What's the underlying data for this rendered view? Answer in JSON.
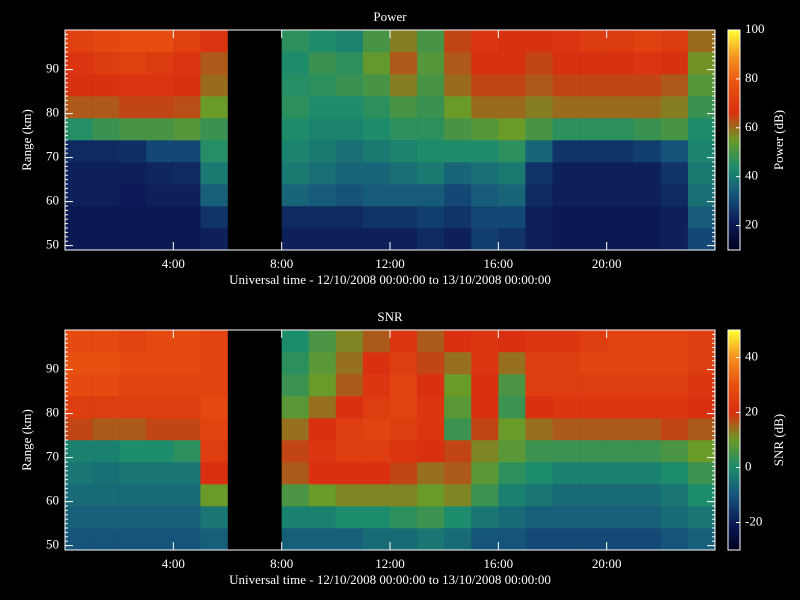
{
  "chart_data": [
    {
      "type": "heatmap",
      "title": "Power",
      "xlabel": "Universal time - 12/10/2008 00:00:00 to 13/10/2008 00:00:00",
      "ylabel": "Range (km)",
      "colorbar_label": "Power (dB)",
      "x_edges": [
        0,
        1,
        2,
        3,
        4,
        5,
        6,
        7,
        8,
        9,
        10,
        11,
        12,
        13,
        14,
        15,
        16,
        17,
        18,
        19,
        20,
        21,
        22,
        23,
        24
      ],
      "y_edges": [
        49,
        54,
        59,
        64,
        69,
        74,
        79,
        84,
        89,
        94,
        99
      ],
      "xlim": [
        0,
        24
      ],
      "ylim": [
        49,
        99
      ],
      "xticks": [
        {
          "value": 4,
          "label": "4:00"
        },
        {
          "value": 8,
          "label": "8:00"
        },
        {
          "value": 12,
          "label": "12:00"
        },
        {
          "value": 16,
          "label": "16:00"
        },
        {
          "value": 20,
          "label": "20:00"
        }
      ],
      "yticks": [
        50,
        60,
        70,
        80,
        90
      ],
      "clim": [
        10,
        100
      ],
      "cticks": [
        20,
        40,
        60,
        80,
        100
      ],
      "colormap": [
        "#000020",
        "#0c1c58",
        "#16547c",
        "#1c8c6c",
        "#6a9a28",
        "#d83010",
        "#e85010",
        "#f49020",
        "#ffff30"
      ],
      "values": [
        [
          20,
          20,
          22,
          22,
          24,
          45,
          62,
          66,
          68,
          72
        ],
        [
          20,
          20,
          22,
          22,
          24,
          48,
          62,
          66,
          70,
          74
        ],
        [
          20,
          20,
          21,
          22,
          25,
          50,
          64,
          68,
          72,
          76
        ],
        [
          20,
          20,
          22,
          23,
          30,
          50,
          64,
          68,
          70,
          76
        ],
        [
          20,
          20,
          22,
          24,
          30,
          52,
          63,
          66,
          68,
          72
        ],
        [
          22,
          26,
          35,
          40,
          45,
          48,
          55,
          60,
          62,
          68
        ],
        [
          null,
          null,
          null,
          null,
          null,
          null,
          null,
          null,
          null,
          null
        ],
        [
          null,
          null,
          null,
          null,
          null,
          null,
          null,
          null,
          null,
          null
        ],
        [
          22,
          24,
          36,
          40,
          42,
          44,
          46,
          45,
          44,
          46
        ],
        [
          22,
          24,
          34,
          38,
          40,
          42,
          44,
          46,
          48,
          44
        ],
        [
          22,
          24,
          32,
          36,
          38,
          42,
          44,
          48,
          46,
          42
        ],
        [
          22,
          26,
          34,
          36,
          40,
          44,
          46,
          50,
          54,
          50
        ],
        [
          22,
          26,
          34,
          38,
          42,
          46,
          50,
          58,
          62,
          58
        ],
        [
          24,
          28,
          34,
          40,
          44,
          46,
          48,
          50,
          52,
          50
        ],
        [
          22,
          26,
          30,
          36,
          44,
          50,
          55,
          60,
          62,
          64
        ],
        [
          28,
          30,
          34,
          38,
          44,
          52,
          60,
          64,
          66,
          68
        ],
        [
          26,
          30,
          36,
          40,
          46,
          55,
          60,
          64,
          66,
          66
        ],
        [
          22,
          22,
          24,
          26,
          36,
          50,
          58,
          62,
          64,
          66
        ],
        [
          20,
          20,
          22,
          22,
          26,
          46,
          60,
          64,
          66,
          68
        ],
        [
          20,
          20,
          22,
          22,
          26,
          46,
          60,
          64,
          66,
          70
        ],
        [
          20,
          20,
          22,
          22,
          26,
          46,
          60,
          64,
          66,
          70
        ],
        [
          20,
          20,
          22,
          22,
          28,
          48,
          60,
          64,
          68,
          72
        ],
        [
          22,
          22,
          24,
          26,
          32,
          50,
          58,
          62,
          66,
          70
        ],
        [
          30,
          34,
          38,
          40,
          42,
          44,
          48,
          52,
          56,
          60
        ]
      ]
    },
    {
      "type": "heatmap",
      "title": "SNR",
      "xlabel": "Universal time - 12/10/2008 00:00:00 to 13/10/2008 00:00:00",
      "ylabel": "Range (km)",
      "colorbar_label": "SNR (dB)",
      "x_edges": [
        0,
        1,
        2,
        3,
        4,
        5,
        6,
        7,
        8,
        9,
        10,
        11,
        12,
        13,
        14,
        15,
        16,
        17,
        18,
        19,
        20,
        21,
        22,
        23,
        24
      ],
      "y_edges": [
        49,
        54,
        59,
        64,
        69,
        74,
        79,
        84,
        89,
        94,
        99
      ],
      "xlim": [
        0,
        24
      ],
      "ylim": [
        49,
        99
      ],
      "xticks": [
        {
          "value": 4,
          "label": "4:00"
        },
        {
          "value": 8,
          "label": "8:00"
        },
        {
          "value": 12,
          "label": "12:00"
        },
        {
          "value": 16,
          "label": "16:00"
        },
        {
          "value": 20,
          "label": "20:00"
        }
      ],
      "yticks": [
        50,
        60,
        70,
        80,
        90
      ],
      "clim": [
        -30,
        50
      ],
      "cticks": [
        -20,
        0,
        20,
        40
      ],
      "colormap": [
        "#000020",
        "#0c1c58",
        "#16547c",
        "#1c8c6c",
        "#6a9a28",
        "#d83010",
        "#e85010",
        "#f49020",
        "#ffff30"
      ],
      "values": [
        [
          -10,
          -8,
          -6,
          -4,
          -2,
          18,
          24,
          28,
          30,
          28
        ],
        [
          -10,
          -8,
          -6,
          -5,
          -2,
          16,
          24,
          28,
          30,
          28
        ],
        [
          -10,
          -8,
          -6,
          -4,
          0,
          16,
          24,
          26,
          28,
          26
        ],
        [
          -10,
          -8,
          -6,
          -4,
          0,
          18,
          24,
          26,
          28,
          28
        ],
        [
          -10,
          -8,
          -6,
          -4,
          2,
          18,
          24,
          26,
          28,
          28
        ],
        [
          -8,
          -4,
          10,
          20,
          24,
          26,
          28,
          26,
          26,
          26
        ],
        [
          null,
          null,
          null,
          null,
          null,
          null,
          null,
          null,
          null,
          null
        ],
        [
          null,
          null,
          null,
          null,
          null,
          null,
          null,
          null,
          null,
          null
        ],
        [
          -8,
          -2,
          6,
          16,
          18,
          14,
          8,
          4,
          2,
          0
        ],
        [
          -8,
          -2,
          10,
          20,
          22,
          20,
          14,
          10,
          8,
          6
        ],
        [
          -8,
          0,
          12,
          20,
          24,
          24,
          20,
          16,
          14,
          12
        ],
        [
          -6,
          0,
          12,
          20,
          24,
          26,
          24,
          22,
          20,
          16
        ],
        [
          -6,
          2,
          12,
          18,
          22,
          24,
          26,
          26,
          24,
          22
        ],
        [
          -4,
          4,
          10,
          14,
          20,
          22,
          22,
          20,
          18,
          16
        ],
        [
          -6,
          0,
          12,
          16,
          18,
          4,
          8,
          10,
          14,
          20
        ],
        [
          -10,
          -4,
          4,
          8,
          12,
          18,
          20,
          20,
          22,
          22
        ],
        [
          -10,
          -6,
          -2,
          2,
          8,
          10,
          4,
          6,
          14,
          20
        ],
        [
          -12,
          -8,
          -4,
          0,
          4,
          14,
          20,
          24,
          24,
          22
        ],
        [
          -12,
          -8,
          -6,
          -2,
          4,
          16,
          22,
          24,
          24,
          22
        ],
        [
          -12,
          -8,
          -6,
          -2,
          4,
          16,
          22,
          24,
          26,
          24
        ],
        [
          -12,
          -8,
          -6,
          -2,
          4,
          16,
          22,
          24,
          26,
          26
        ],
        [
          -12,
          -8,
          -6,
          -2,
          4,
          16,
          22,
          24,
          26,
          26
        ],
        [
          -10,
          -6,
          -4,
          0,
          6,
          18,
          22,
          24,
          26,
          26
        ],
        [
          -8,
          -4,
          0,
          4,
          10,
          16,
          20,
          22,
          24,
          24
        ]
      ]
    }
  ]
}
